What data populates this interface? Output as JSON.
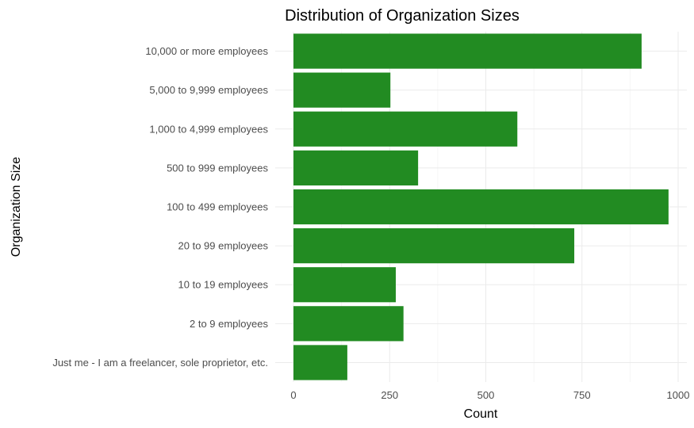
{
  "chart_data": {
    "type": "bar",
    "orientation": "horizontal",
    "title": "Distribution of Organization Sizes",
    "xlabel": "Count",
    "ylabel": "Organization Size",
    "categories": [
      "10,000 or more employees",
      "5,000 to 9,999 employees",
      "1,000 to 4,999 employees",
      "500 to 999 employees",
      "100 to 499 employees",
      "20 to 99 employees",
      "10 to 19 employees",
      "2 to 9 employees",
      "Just me - I am a freelancer, sole proprietor, etc."
    ],
    "values": [
      905,
      252,
      582,
      324,
      975,
      730,
      266,
      286,
      140
    ],
    "xlim": [
      0,
      1000
    ],
    "xticks": [
      0,
      250,
      500,
      750,
      1000
    ],
    "xtick_labels": [
      "0",
      "250",
      "500",
      "750",
      "1000"
    ],
    "grid": true,
    "legend": "none",
    "bar_color": "#228b22"
  }
}
